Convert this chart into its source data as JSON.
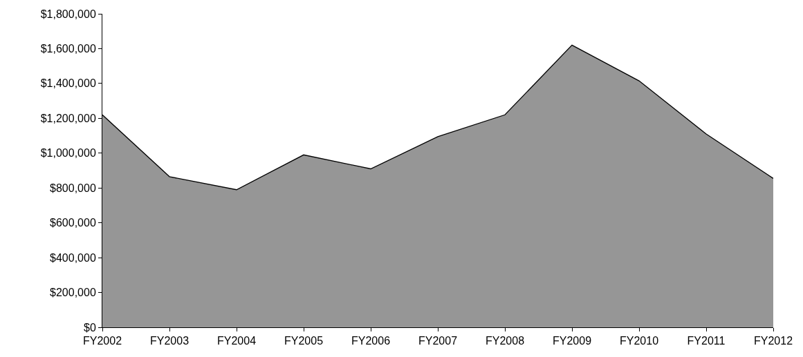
{
  "chart_data": {
    "type": "area",
    "categories": [
      "FY2002",
      "FY2003",
      "FY2004",
      "FY2005",
      "FY2006",
      "FY2007",
      "FY2008",
      "FY2009",
      "FY2010",
      "FY2011",
      "FY2012"
    ],
    "series": [
      {
        "color": "#969696",
        "values": [
          1220000,
          865000,
          790000,
          990000,
          910000,
          1095000,
          1220000,
          1620000,
          1415000,
          1110000,
          855000
        ]
      }
    ],
    "ylim": [
      0,
      1800000
    ],
    "yticks": [
      {
        "value": 0,
        "label": "$0"
      },
      {
        "value": 200000,
        "label": "$200,000"
      },
      {
        "value": 400000,
        "label": "$400,000"
      },
      {
        "value": 600000,
        "label": "$600,000"
      },
      {
        "value": 800000,
        "label": "$800,000"
      },
      {
        "value": 1000000,
        "label": "$1,000,000"
      },
      {
        "value": 1200000,
        "label": "$1,200,000"
      },
      {
        "value": 1400000,
        "label": "$1,400,000"
      },
      {
        "value": 1600000,
        "label": "$1,600,000"
      },
      {
        "value": 1800000,
        "label": "$1,800,000"
      }
    ],
    "grid": false
  }
}
